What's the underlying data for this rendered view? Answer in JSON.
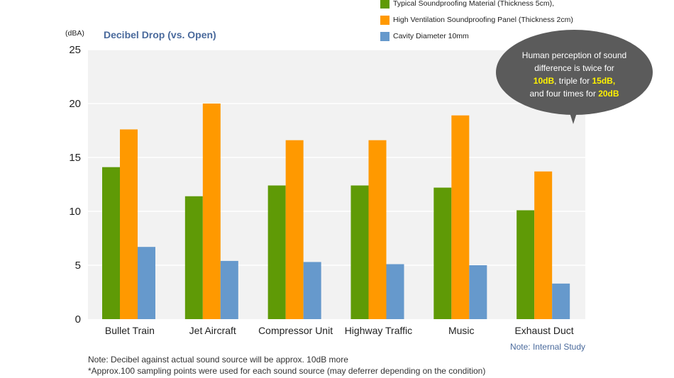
{
  "unit_label": "(dBA)",
  "bubble": {
    "line1": "Human perception of sound",
    "line2": "difference is twice for",
    "hl1": "10dB",
    "mid": ", triple for ",
    "hl2": "15dB,",
    "line4_prefix": "and four times for ",
    "hl3": "20dB"
  },
  "source_note": "Note: Internal Study",
  "footnotes": [
    "Note: Decibel against actual sound source will be approx. 10dB more",
    "*Approx.100 sampling points were used for each sound source (may deferrer depending on the condition)"
  ],
  "colors": {
    "typical": "#5f9a06",
    "high_ventilation": "#ff9900",
    "cavity": "#6699cc",
    "plot_bg": "#f2f2f2",
    "grid": "#ffffff"
  },
  "chart_data": {
    "type": "bar",
    "title": "Decibel Drop (vs. Open)",
    "ylabel": "(dBA)",
    "xlabel": "",
    "ylim": [
      0,
      25
    ],
    "yticks": [
      0,
      5,
      10,
      15,
      20,
      25
    ],
    "grid": true,
    "legend_position": "top-right",
    "categories": [
      "Bullet Train",
      "Jet Aircraft",
      "Compressor Unit",
      "Highway Traffic",
      "Music",
      "Exhaust Duct"
    ],
    "series": [
      {
        "name": "Typical Soundproofing Material (Thickness 5cm),",
        "color": "#5f9a06",
        "values": [
          14.1,
          11.4,
          12.4,
          12.4,
          12.2,
          10.1
        ]
      },
      {
        "name": "High Ventilation Soundproofing Panel (Thickness 2cm)",
        "color": "#ff9900",
        "values": [
          17.6,
          20.0,
          16.6,
          16.6,
          18.9,
          13.7
        ]
      },
      {
        "name": "Cavity Diameter 10mm",
        "color": "#6699cc",
        "values": [
          6.7,
          5.4,
          5.3,
          5.1,
          5.0,
          3.3
        ]
      }
    ]
  }
}
